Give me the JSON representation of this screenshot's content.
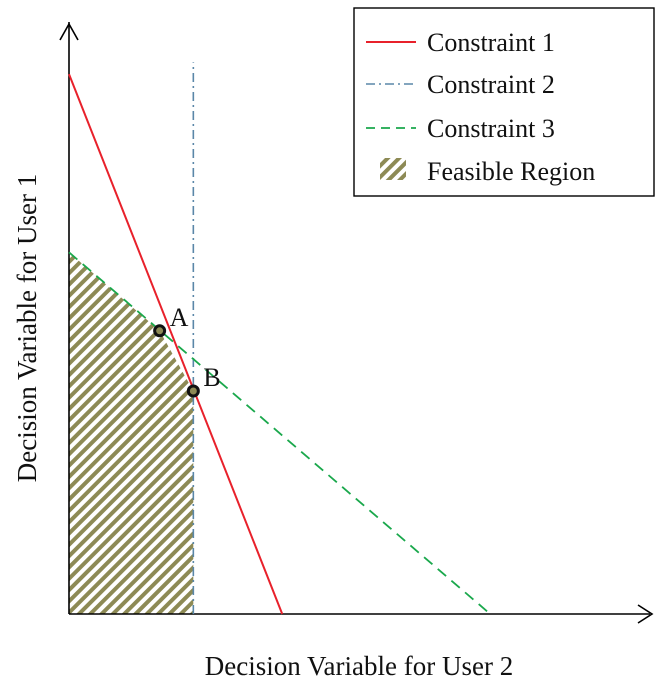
{
  "chart_data": {
    "type": "line",
    "title": "",
    "xlabel": "Decision Variable for User 2",
    "ylabel": "Decision Variable for User 1",
    "xlim": [
      0,
      10
    ],
    "ylim": [
      0,
      10
    ],
    "grid": false,
    "axis_ticks": "none",
    "legend_position": "top-right",
    "series": [
      {
        "name": "Constraint 1",
        "style": "solid",
        "color": "#e8212b",
        "x": [
          0,
          3.67
        ],
        "y": [
          9.15,
          0
        ]
      },
      {
        "name": "Constraint 2",
        "style": "dash-dot",
        "color": "#5a87a8",
        "x": [
          2.14,
          2.14
        ],
        "y": [
          0,
          9.35
        ]
      },
      {
        "name": "Constraint 3",
        "style": "dashed",
        "color": "#1aa84c",
        "x": [
          0,
          7.25
        ],
        "y": [
          6.13,
          0
        ]
      }
    ],
    "feasible_region": {
      "name": "Feasible Region",
      "fill": "diagonal-hatch",
      "colors": [
        "#8d8a55",
        "#ffffff"
      ],
      "x": [
        0,
        2.14,
        2.14,
        1.56,
        0
      ],
      "y": [
        0,
        0,
        3.78,
        4.8,
        6.13
      ]
    },
    "points": [
      {
        "label": "A",
        "x": 1.56,
        "y": 4.8
      },
      {
        "label": "B",
        "x": 2.14,
        "y": 3.78
      }
    ]
  }
}
